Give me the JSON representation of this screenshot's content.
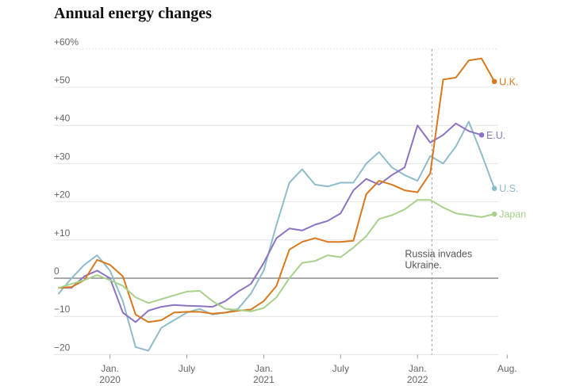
{
  "chart_data": {
    "type": "line",
    "title": "Annual energy changes",
    "xlabel": "",
    "ylabel": "",
    "ylim": [
      -20,
      60
    ],
    "y_ticks": [
      {
        "value": 60,
        "label": "+60%"
      },
      {
        "value": 50,
        "label": "+50"
      },
      {
        "value": 40,
        "label": "+40"
      },
      {
        "value": 30,
        "label": "+30"
      },
      {
        "value": 20,
        "label": "+20"
      },
      {
        "value": 10,
        "label": "+10"
      },
      {
        "value": 0,
        "label": "0"
      },
      {
        "value": -10,
        "label": "−10"
      },
      {
        "value": -20,
        "label": "−20"
      }
    ],
    "x_start": "2019-09",
    "x_ticks": [
      {
        "date": "2020-01",
        "label": "Jan.",
        "label2": "2020"
      },
      {
        "date": "2020-07",
        "label": "July",
        "label2": ""
      },
      {
        "date": "2021-01",
        "label": "Jan.",
        "label2": "2021"
      },
      {
        "date": "2021-07",
        "label": "July",
        "label2": ""
      },
      {
        "date": "2022-01",
        "label": "Jan.",
        "label2": "2022"
      },
      {
        "date": "2022-08",
        "label": "Aug.",
        "label2": ""
      }
    ],
    "grid": true,
    "annotations": [
      {
        "date": "2022-02",
        "text_lines": [
          "Russia invades",
          "Ukraine."
        ]
      }
    ],
    "series": [
      {
        "name": "U.S.",
        "color": "#8fbccb",
        "values": [
          -4,
          0,
          3.5,
          6,
          2,
          -6,
          -18,
          -19,
          -13,
          -11,
          -9,
          -8,
          -9.5,
          -9,
          -8,
          -4,
          2,
          14,
          25,
          28.5,
          24.5,
          24,
          25,
          25,
          30,
          33,
          29,
          27,
          25.5,
          32,
          30,
          34.5,
          41,
          32.5,
          23.5
        ]
      },
      {
        "name": "E.U.",
        "color": "#8c73c4",
        "values": [
          -2.5,
          -2.5,
          0.5,
          2,
          0,
          -9,
          -11.5,
          -8.5,
          -7.5,
          -7,
          -7.2,
          -7.3,
          -7.5,
          -6,
          -3.5,
          -1.5,
          4,
          10.5,
          13,
          12.5,
          14,
          15,
          17,
          23,
          26,
          24.5,
          27,
          29,
          40,
          35.5,
          37.5,
          40.5,
          38.5,
          37.5
        ]
      },
      {
        "name": "U.K.",
        "color": "#d9791f",
        "values": [
          -2.5,
          -2.3,
          -0.5,
          4.8,
          3.5,
          0.5,
          -9.5,
          -11.5,
          -11,
          -9,
          -8.8,
          -8.8,
          -9.3,
          -9,
          -8.5,
          -8.2,
          -6,
          -2,
          7.5,
          9.5,
          10.5,
          9.5,
          9.5,
          9.8,
          22,
          25.5,
          24.5,
          23,
          22.5,
          27.5,
          52,
          52.5,
          57,
          57.5,
          51.5
        ]
      },
      {
        "name": "Japan",
        "color": "#a8d18c",
        "values": [
          -2.5,
          -1.5,
          -0.5,
          0.8,
          -0.5,
          -2,
          -5,
          -6.5,
          -5.5,
          -4.5,
          -3.5,
          -3.3,
          -6,
          -8,
          -8.3,
          -8.7,
          -7.8,
          -5,
          0,
          4,
          4.5,
          6,
          5.5,
          8,
          11,
          15.5,
          16.5,
          18,
          20.5,
          20.5,
          18.5,
          17,
          16.5,
          16,
          16.8
        ]
      }
    ]
  }
}
